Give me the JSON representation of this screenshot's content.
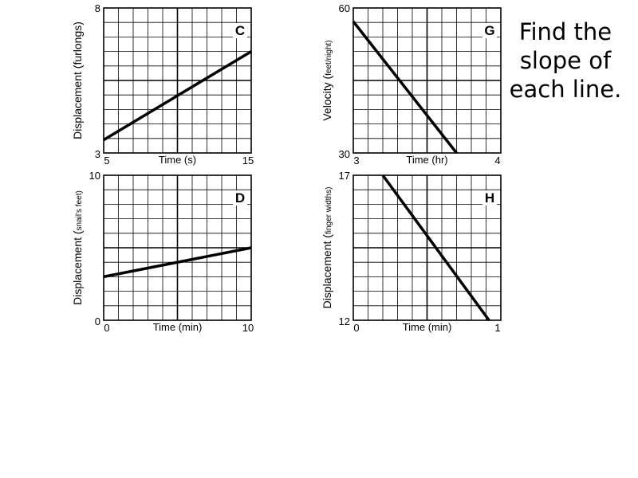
{
  "prompt": {
    "lines": [
      "Find the",
      "slope of",
      "each line."
    ]
  },
  "chart_data": [
    {
      "type": "line",
      "label": "C",
      "xlabel": "Time (s)",
      "ylabel": "Displacement (furlongs)",
      "ylabel_main": "Displacement (furlongs)",
      "ylabel_sub": "",
      "xlim": [
        5,
        15
      ],
      "ylim": [
        3,
        8
      ],
      "x_ticks": [
        "5",
        "15"
      ],
      "y_ticks": [
        "3",
        "8"
      ],
      "grid": true,
      "series": [
        {
          "x": [
            5,
            15
          ],
          "y": [
            3.45,
            6.5
          ]
        }
      ]
    },
    {
      "type": "line",
      "label": "G",
      "xlabel": "Time (hr)",
      "ylabel": "Velocity (feet/night)",
      "ylabel_main": "Velocity (",
      "ylabel_sub": "feet/night)",
      "xlim": [
        3,
        4
      ],
      "ylim": [
        30,
        60
      ],
      "x_ticks": [
        "3",
        "4"
      ],
      "y_ticks": [
        "30",
        "60"
      ],
      "grid": true,
      "series": [
        {
          "x": [
            3,
            3.7
          ],
          "y": [
            57.2,
            30
          ]
        }
      ]
    },
    {
      "type": "line",
      "label": "D",
      "xlabel": "Time (min)",
      "ylabel": "Displacement (snail's feet)",
      "ylabel_main": "Displacement (",
      "ylabel_sub": "snail's feet)",
      "xlim": [
        0,
        10
      ],
      "ylim": [
        0,
        10
      ],
      "x_ticks": [
        "0",
        "10"
      ],
      "y_ticks": [
        "0",
        "10"
      ],
      "grid": true,
      "series": [
        {
          "x": [
            0,
            10
          ],
          "y": [
            3,
            5
          ]
        }
      ]
    },
    {
      "type": "line",
      "label": "H",
      "xlabel": "Time (min)",
      "ylabel": "Displacement (finger widths)",
      "ylabel_main": "Displacement (",
      "ylabel_sub": "finger widths)",
      "xlim": [
        0,
        1
      ],
      "ylim": [
        12,
        17
      ],
      "x_ticks": [
        "0",
        "1"
      ],
      "y_ticks": [
        "12",
        "17"
      ],
      "grid": true,
      "series": [
        {
          "x": [
            0.2,
            0.92
          ],
          "y": [
            17,
            12
          ]
        }
      ]
    }
  ]
}
